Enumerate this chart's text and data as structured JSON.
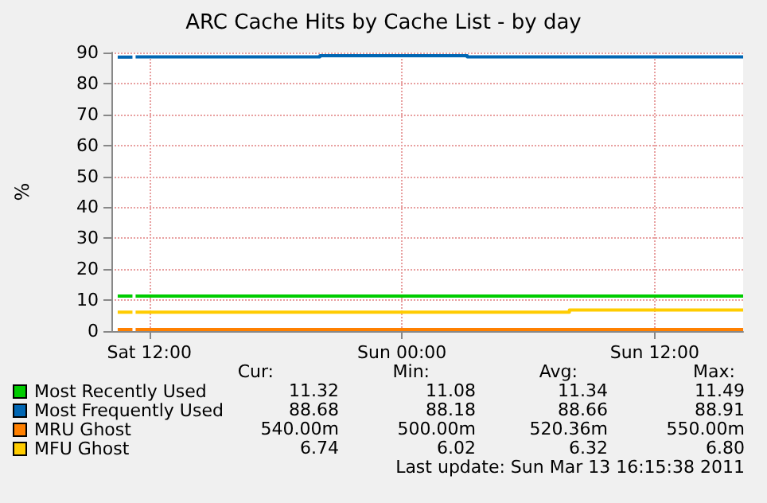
{
  "chart_data": {
    "type": "step",
    "title": "ARC Cache Hits by Cache List - by day",
    "ylabel": "%",
    "xlim": [
      "2011-03-12T10:12",
      "2011-03-13T16:12"
    ],
    "xticks": [
      {
        "value": "2011-03-12T12:00",
        "label": "Sat 12:00"
      },
      {
        "value": "2011-03-13T00:00",
        "label": "Sun 00:00"
      },
      {
        "value": "2011-03-13T12:00",
        "label": "Sun 12:00"
      }
    ],
    "ylim": [
      0,
      90
    ],
    "yticks": [
      0,
      10,
      20,
      30,
      40,
      50,
      60,
      70,
      80,
      90
    ],
    "grid": true,
    "legend": "bottom left",
    "series": [
      {
        "name": "Most Recently Used",
        "color": "#00cc00",
        "x": [
          "2011-03-12T10:30",
          "2011-03-12T11:00",
          "2011-03-12T11:12",
          "2011-03-12T11:21",
          "2011-03-13T16:12"
        ],
        "values": [
          11.3,
          11.3,
          null,
          11.3,
          11.3
        ]
      },
      {
        "name": "Most Frequently Used",
        "color": "#0066b3",
        "x": [
          "2011-03-12T10:30",
          "2011-03-12T11:00",
          "2011-03-12T11:12",
          "2011-03-12T11:21",
          "2011-03-12T20:06",
          "2011-03-13T03:06",
          "2011-03-13T16:12"
        ],
        "values": [
          88.5,
          88.5,
          null,
          88.6,
          89,
          88.6,
          88.6
        ]
      },
      {
        "name": "MRU Ghost",
        "color": "#ff8000",
        "x": [
          "2011-03-12T10:30",
          "2011-03-12T11:00",
          "2011-03-12T11:12",
          "2011-03-12T11:21",
          "2011-03-13T16:12"
        ],
        "values": [
          0.5,
          0.5,
          null,
          0.5,
          0.5
        ]
      },
      {
        "name": "MFU Ghost",
        "color": "#ffcc00",
        "x": [
          "2011-03-12T10:30",
          "2011-03-12T11:00",
          "2011-03-12T11:12",
          "2011-03-12T11:21",
          "2011-03-13T07:57",
          "2011-03-13T16:12"
        ],
        "values": [
          6.1,
          6.1,
          null,
          6.1,
          6.8,
          6.8
        ]
      }
    ],
    "annotations": [
      "Cur:",
      "Min:",
      "Avg:",
      "Max:",
      "11.32",
      "11.08",
      "11.34",
      "11.49",
      "88.68",
      "88.18",
      "88.66",
      "88.91",
      "540.00m",
      "500.00m",
      "520.36m",
      "550.00m",
      "6.74",
      "6.02",
      "6.32",
      "6.80",
      "Last update: Sun Mar 13 16:15:38 2011"
    ]
  }
}
